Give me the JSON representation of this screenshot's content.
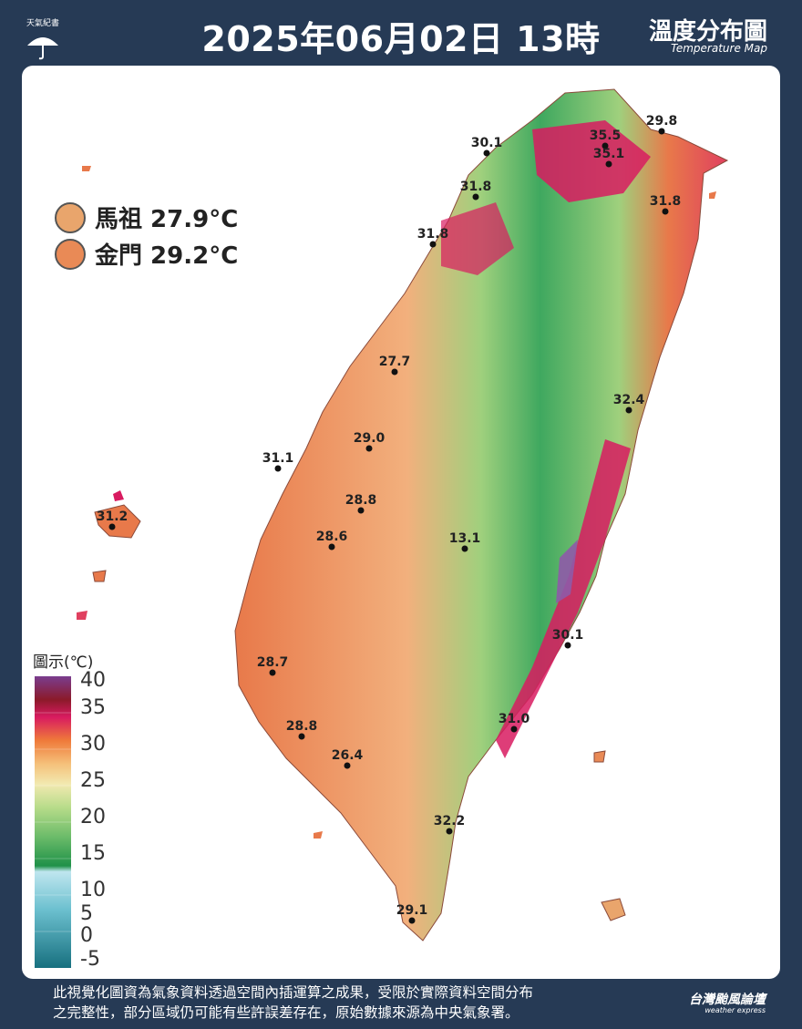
{
  "header": {
    "logo_text": "天氣紀書",
    "title": "2025年06月02日 13時",
    "map_title_zh": "溫度分布圖",
    "map_title_en": "Temperature Map"
  },
  "islands": [
    {
      "name": "馬祖 27.9°C",
      "color": "#e9a56c"
    },
    {
      "name": "金門 29.2°C",
      "color": "#e98a56"
    }
  ],
  "stations": [
    {
      "label": "29.8"
    },
    {
      "label": "35.5"
    },
    {
      "label": "35.1"
    },
    {
      "label": "30.1"
    },
    {
      "label": "31.8"
    },
    {
      "label": "31.8"
    },
    {
      "label": "31.8"
    },
    {
      "label": "27.7"
    },
    {
      "label": "32.4"
    },
    {
      "label": "29.0"
    },
    {
      "label": "31.1"
    },
    {
      "label": "31.2"
    },
    {
      "label": "28.8"
    },
    {
      "label": "28.6"
    },
    {
      "label": "13.1"
    },
    {
      "label": "30.1"
    },
    {
      "label": "28.7"
    },
    {
      "label": "31.0"
    },
    {
      "label": "28.8"
    },
    {
      "label": "26.4"
    },
    {
      "label": "32.2"
    },
    {
      "label": "29.1"
    }
  ],
  "legend": {
    "title": "圖示(℃)",
    "ticks": [
      "40",
      "35",
      "30",
      "25",
      "20",
      "15",
      "10",
      "5",
      "0",
      "-5"
    ]
  },
  "footer": {
    "line1": "此視覺化圖資為氣象資料透過空間內插運算之成果，受限於實際資料空間分布",
    "line2": "之完整性，部分區域仍可能有些許誤差存在，原始數據來源為中央氣象署。"
  },
  "brand": {
    "name": "台灣颱風論壇",
    "sub": "weather express"
  },
  "colors": {
    "background": "#263a55",
    "panel": "#ffffff",
    "hot": "#d81b60",
    "warm": "#e8794a",
    "mild": "#f2c28f",
    "cool": "#7fbf6a",
    "cold": "#2e9b5a"
  }
}
